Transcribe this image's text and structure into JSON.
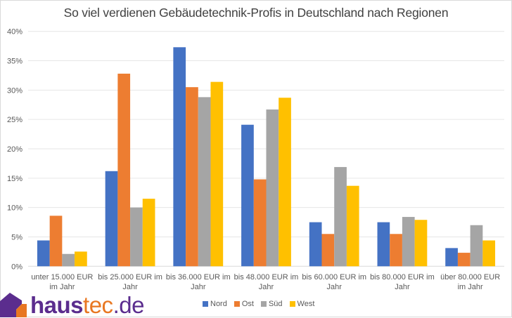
{
  "chart_data": {
    "type": "bar",
    "title": "So viel verdienen Gebäudetechnik-Profis in Deutschland nach Regionen",
    "xlabel": "",
    "ylabel": "",
    "ylim": [
      0,
      0.4
    ],
    "yticks": [
      "0%",
      "5%",
      "10%",
      "15%",
      "20%",
      "25%",
      "30%",
      "35%",
      "40%"
    ],
    "ytick_values": [
      0,
      0.05,
      0.1,
      0.15,
      0.2,
      0.25,
      0.3,
      0.35,
      0.4
    ],
    "grid": true,
    "legend_position": "bottom",
    "categories": [
      [
        "unter 15.000 EUR",
        "im Jahr"
      ],
      [
        "bis 25.000 EUR im",
        "Jahr"
      ],
      [
        "bis 36.000 EUR im",
        "Jahr"
      ],
      [
        "bis 48.000 EUR im",
        "Jahr"
      ],
      [
        "bis 60.000 EUR im",
        "Jahr"
      ],
      [
        "bis 80.000 EUR im",
        "Jahr"
      ],
      [
        "über 80.000 EUR",
        "im Jahr"
      ]
    ],
    "series": [
      {
        "name": "Nord",
        "color": "#4472c4",
        "values": [
          0.044,
          0.162,
          0.373,
          0.241,
          0.075,
          0.075,
          0.031
        ]
      },
      {
        "name": "Ost",
        "color": "#ed7d31",
        "values": [
          0.086,
          0.328,
          0.305,
          0.148,
          0.055,
          0.055,
          0.023
        ]
      },
      {
        "name": "Süd",
        "color": "#a5a5a5",
        "values": [
          0.021,
          0.1,
          0.288,
          0.267,
          0.169,
          0.084,
          0.07
        ]
      },
      {
        "name": "West",
        "color": "#ffc000",
        "values": [
          0.025,
          0.115,
          0.314,
          0.287,
          0.137,
          0.079,
          0.044
        ]
      }
    ]
  },
  "logo": {
    "part1": "haus",
    "part2": "tec",
    "part3": ".de",
    "color_primary": "#5b2d8e",
    "color_accent": "#e87722"
  }
}
